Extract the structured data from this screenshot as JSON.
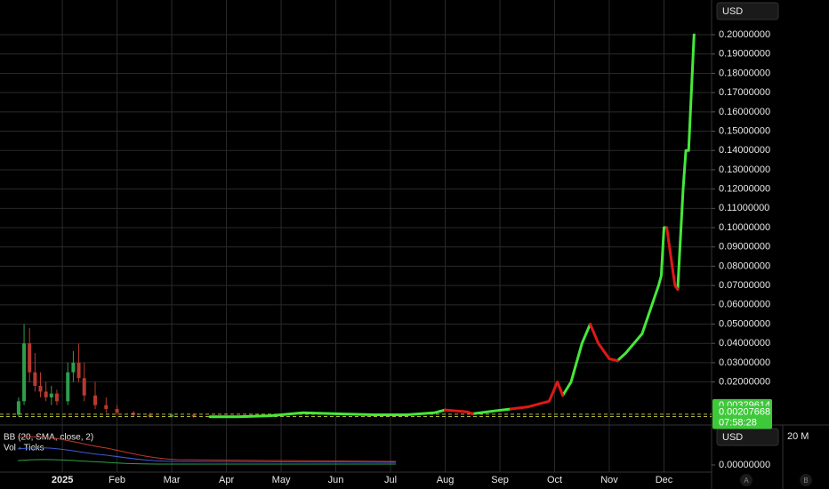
{
  "chart_data": {
    "type": "line",
    "currency": "USD",
    "grid": true,
    "xlim": [
      -1.14,
      11.87
    ],
    "xticks": [
      {
        "value": 0,
        "label": "2025"
      },
      {
        "value": 1,
        "label": "Feb"
      },
      {
        "value": 2,
        "label": "Mar"
      },
      {
        "value": 3,
        "label": "Apr"
      },
      {
        "value": 4,
        "label": "May"
      },
      {
        "value": 5,
        "label": "Jun"
      },
      {
        "value": 6,
        "label": "Jul"
      },
      {
        "value": 7,
        "label": "Aug"
      },
      {
        "value": 8,
        "label": "Sep"
      },
      {
        "value": 9,
        "label": "Oct"
      },
      {
        "value": 10,
        "label": "Nov"
      },
      {
        "value": 11,
        "label": "Dec"
      }
    ],
    "ylim": [
      -0.0023,
      0.218
    ],
    "yticks": [
      {
        "value": 0.2,
        "label": "0.20000000"
      },
      {
        "value": 0.19,
        "label": "0.19000000"
      },
      {
        "value": 0.18,
        "label": "0.18000000"
      },
      {
        "value": 0.17,
        "label": "0.17000000"
      },
      {
        "value": 0.16,
        "label": "0.16000000"
      },
      {
        "value": 0.15,
        "label": "0.15000000"
      },
      {
        "value": 0.14,
        "label": "0.14000000"
      },
      {
        "value": 0.13,
        "label": "0.13000000"
      },
      {
        "value": 0.12,
        "label": "0.12000000"
      },
      {
        "value": 0.11,
        "label": "0.11000000"
      },
      {
        "value": 0.1,
        "label": "0.10000000"
      },
      {
        "value": 0.09,
        "label": "0.09000000"
      },
      {
        "value": 0.08,
        "label": "0.08000000"
      },
      {
        "value": 0.07,
        "label": "0.07000000"
      },
      {
        "value": 0.06,
        "label": "0.06000000"
      },
      {
        "value": 0.05,
        "label": "0.05000000"
      },
      {
        "value": 0.04,
        "label": "0.04000000"
      },
      {
        "value": 0.03,
        "label": "0.03000000"
      },
      {
        "value": 0.02,
        "label": "0.02000000"
      }
    ],
    "x": [
      2.7,
      3.2,
      3.8,
      4.4,
      5.0,
      5.7,
      6.3,
      6.8,
      7.0,
      7.4,
      7.5,
      7.9,
      8.2,
      8.5,
      8.9,
      9.05,
      9.15,
      9.3,
      9.5,
      9.65,
      9.8,
      10.0,
      10.15,
      10.3,
      10.6,
      10.9,
      10.95,
      11.0,
      11.05,
      11.2,
      11.25,
      11.35,
      11.4,
      11.45,
      11.55
    ],
    "series": [
      {
        "color": "#46e83a",
        "values": [
          0.002,
          0.002,
          0.0025,
          0.004,
          0.0035,
          0.003,
          0.003,
          0.004,
          0.0055,
          null,
          0.0035,
          0.005,
          0.006,
          null,
          null,
          null,
          0.013,
          0.02,
          0.04,
          0.05,
          null,
          null,
          0.031,
          0.035,
          0.045,
          0.07,
          0.075,
          0.1,
          0.1,
          null,
          0.068,
          0.12,
          0.14,
          0.14,
          0.2
        ]
      },
      {
        "color": "#e01818",
        "values": [
          null,
          null,
          null,
          null,
          null,
          null,
          null,
          null,
          0.0055,
          0.0045,
          0.0035,
          null,
          0.006,
          0.007,
          0.01,
          0.02,
          0.013,
          null,
          null,
          0.05,
          0.04,
          0.032,
          0.031,
          null,
          null,
          null,
          null,
          null,
          0.1,
          0.07,
          0.068,
          null,
          null,
          null,
          null
        ]
      }
    ],
    "candles": {
      "up_color": "#2f9e4a",
      "down_color": "#b83a2e",
      "x": [
        -0.8,
        -0.7,
        -0.6,
        -0.5,
        -0.4,
        -0.3,
        -0.2,
        -0.1,
        0.1,
        0.2,
        0.3,
        0.4,
        0.6,
        0.8,
        1.0,
        1.3,
        1.6,
        2.0,
        2.4
      ],
      "open": [
        0.003,
        0.01,
        0.04,
        0.025,
        0.018,
        0.015,
        0.012,
        0.014,
        0.01,
        0.025,
        0.03,
        0.022,
        0.013,
        0.008,
        0.006,
        0.004,
        0.003,
        0.002,
        0.003
      ],
      "high": [
        0.012,
        0.05,
        0.048,
        0.035,
        0.025,
        0.02,
        0.018,
        0.016,
        0.03,
        0.036,
        0.04,
        0.03,
        0.02,
        0.012,
        0.008,
        0.005,
        0.004,
        0.0035,
        0.003
      ],
      "low": [
        0.002,
        0.008,
        0.02,
        0.015,
        0.012,
        0.01,
        0.008,
        0.008,
        0.008,
        0.02,
        0.02,
        0.01,
        0.006,
        0.004,
        0.003,
        0.002,
        0.0015,
        0.0015,
        0.0015
      ],
      "close": [
        0.01,
        0.04,
        0.025,
        0.018,
        0.015,
        0.012,
        0.014,
        0.01,
        0.025,
        0.03,
        0.022,
        0.013,
        0.008,
        0.006,
        0.004,
        0.003,
        0.002,
        0.003,
        0.002
      ]
    },
    "price_markers": [
      {
        "value": 0.00329614,
        "label": "0.00329614",
        "color": "#3ec93a"
      },
      {
        "value": 0.00207668,
        "label": "0.00207668",
        "color": "#3ec93a"
      }
    ],
    "countdown": "07:58:28",
    "indicator_pane": {
      "legend": [
        "BB (20, SMA, close, 2)",
        "Vol · Ticks"
      ],
      "currency": "USD",
      "yticks": [
        {
          "value": 0,
          "label": "0.00000000"
        }
      ],
      "volume_scale": "20 M"
    },
    "scale_buttons": [
      "A",
      "B"
    ]
  }
}
